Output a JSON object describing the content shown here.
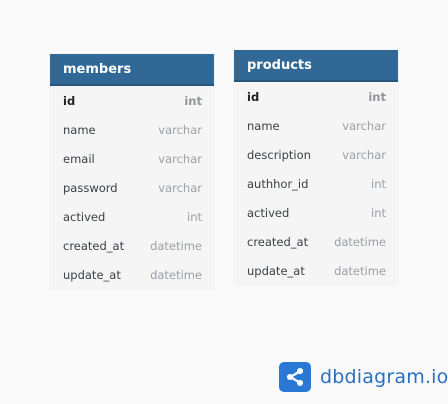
{
  "tables": [
    {
      "name": "members",
      "fields": [
        {
          "name": "id",
          "type": "int",
          "pk": true
        },
        {
          "name": "name",
          "type": "varchar"
        },
        {
          "name": "email",
          "type": "varchar"
        },
        {
          "name": "password",
          "type": "varchar"
        },
        {
          "name": "actived",
          "type": "int"
        },
        {
          "name": "created_at",
          "type": "datetime"
        },
        {
          "name": "update_at",
          "type": "datetime"
        }
      ]
    },
    {
      "name": "products",
      "fields": [
        {
          "name": "id",
          "type": "int",
          "pk": true
        },
        {
          "name": "name",
          "type": "varchar"
        },
        {
          "name": "description",
          "type": "varchar"
        },
        {
          "name": "authhor_id",
          "type": "int"
        },
        {
          "name": "actived",
          "type": "int"
        },
        {
          "name": "created_at",
          "type": "datetime"
        },
        {
          "name": "update_at",
          "type": "datetime"
        }
      ]
    }
  ],
  "brand": {
    "text": "dbdiagram.io",
    "logo_icon": "share-nodes-icon",
    "logo_color": "#2a78d6",
    "text_color": "#2a6fc4"
  },
  "colors": {
    "table_header": "#316896",
    "table_body": "#f5f5f6",
    "background": "#fafafb"
  }
}
